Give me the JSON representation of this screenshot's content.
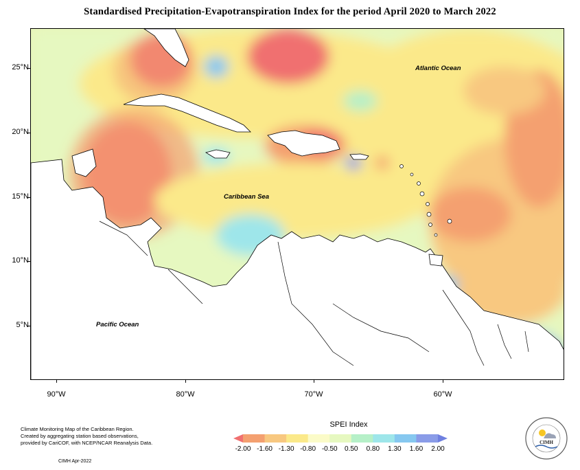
{
  "title": "Standardised Precipitation-Evapotranspiration Index for the period April 2020 to March 2022",
  "latitude_labels": [
    "25°N",
    "20°N",
    "15°N",
    "10°N",
    "5°N"
  ],
  "longitude_labels": [
    "90°W",
    "80°W",
    "70°W",
    "60°W"
  ],
  "region_labels": {
    "atlantic": "Atlantic Ocean",
    "caribbean": "Caribbean Sea",
    "pacific": "Pacific Ocean"
  },
  "legend": {
    "title": "SPEI Index",
    "values": [
      "-2.00",
      "-1.60",
      "-1.30",
      "-0.80",
      "-0.50",
      "0.50",
      "0.80",
      "1.30",
      "1.60",
      "2.00"
    ],
    "colors": [
      "#f07070",
      "#f4a070",
      "#f8c880",
      "#fbe98a",
      "#fbfbc8",
      "#e6f8c0",
      "#b6f0c8",
      "#9ee6ea",
      "#86c8f0",
      "#8a9ce8",
      "#6f80e0"
    ]
  },
  "note_lines": [
    "Climate Monitoring Map of the Caribbean Region.",
    "Created by aggregating station based observations,",
    "provided by CariCOF, with NCEP/NCAR Reanalysis Data."
  ],
  "stamp": "CIMH Apr-2022",
  "logo_text": "CIMH",
  "logo_ring_text": "Caribbean Institute for Meteorology and Hydrology"
}
